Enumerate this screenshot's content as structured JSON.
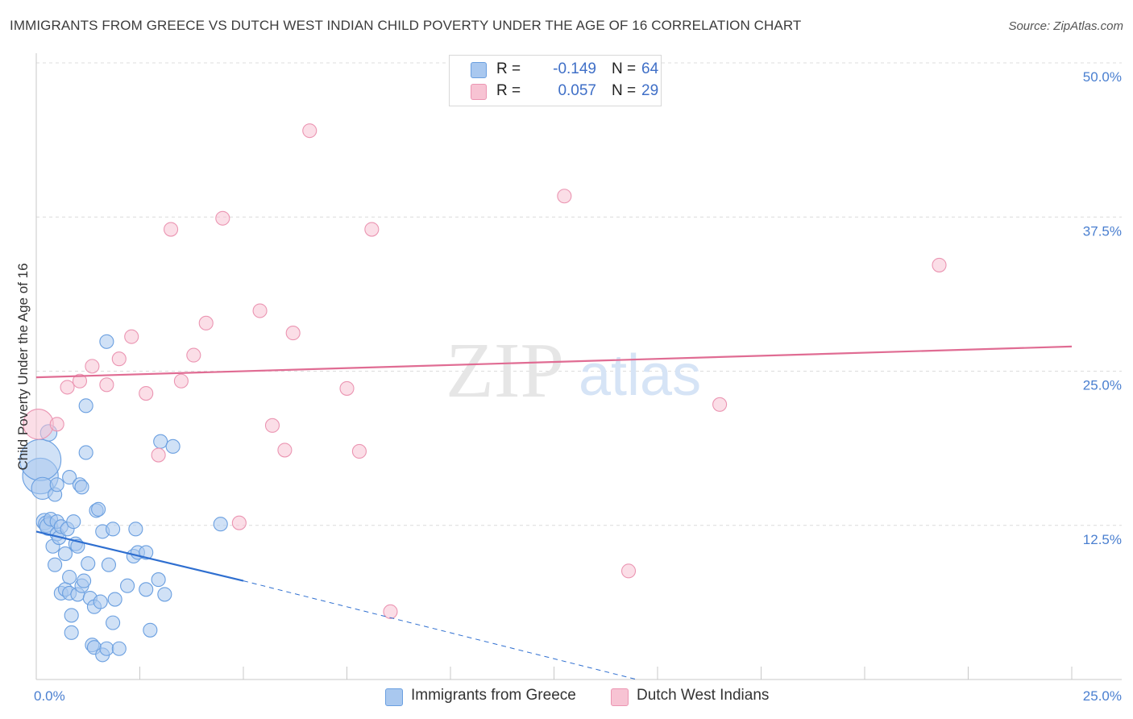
{
  "header": {
    "title": "IMMIGRANTS FROM GREECE VS DUTCH WEST INDIAN CHILD POVERTY UNDER THE AGE OF 16 CORRELATION CHART",
    "source": "Source: ZipAtlas.com"
  },
  "watermark": {
    "zip": "ZIP",
    "atlas": "atlas"
  },
  "legend": {
    "series1": {
      "r_label": "R =",
      "r_value": "-0.149",
      "n_label": "N =",
      "n_value": "64"
    },
    "series2": {
      "r_label": "R =",
      "r_value": "0.057",
      "n_label": "N =",
      "n_value": "29"
    }
  },
  "bottom_legend": {
    "series1": "Immigrants from Greece",
    "series2": "Dutch West Indians"
  },
  "colors": {
    "blue_fill": "#a9c8ef",
    "blue_stroke": "#6a9fe0",
    "blue_line": "#2f6fd0",
    "pink_fill": "#f7c3d3",
    "pink_stroke": "#eb95b2",
    "pink_line": "#e06c93",
    "grid": "#dcdcdc",
    "tick_label": "#4a7fd0"
  },
  "chart_data": {
    "type": "scatter",
    "title": "IMMIGRANTS FROM GREECE VS DUTCH WEST INDIAN CHILD POVERTY UNDER THE AGE OF 16 CORRELATION CHART",
    "xlabel": "",
    "ylabel": "Child Poverty Under the Age of 16",
    "xlim": [
      0,
      25
    ],
    "ylim": [
      0,
      50
    ],
    "x_tick_labels": [
      "0.0%",
      "25.0%"
    ],
    "y_ticks": [
      12.5,
      25.0,
      37.5,
      50.0
    ],
    "y_tick_labels": [
      "12.5%",
      "25.0%",
      "37.5%",
      "50.0%"
    ],
    "grid": true,
    "series": [
      {
        "name": "Immigrants from Greece",
        "color": "#a9c8ef",
        "r": -0.149,
        "n": 64,
        "trend": {
          "x": [
            0,
            5.0
          ],
          "y": [
            12.0,
            8.0
          ],
          "dashed_to": [
            14.5,
            0
          ]
        },
        "points": [
          [
            0.1,
            16.5,
            2.6
          ],
          [
            0.1,
            17.8,
            3.0
          ],
          [
            0.15,
            15.5,
            1.6
          ],
          [
            0.2,
            12.8,
            1.2
          ],
          [
            0.25,
            12.6,
            1.2
          ],
          [
            0.3,
            12.4,
            1.3
          ],
          [
            0.3,
            20.0,
            1.2
          ],
          [
            0.35,
            13.0,
            1.0
          ],
          [
            0.4,
            10.8,
            1.0
          ],
          [
            0.45,
            9.3,
            1.0
          ],
          [
            0.5,
            11.8,
            1.0
          ],
          [
            0.5,
            12.8,
            1.0
          ],
          [
            0.45,
            15.0,
            1.0
          ],
          [
            0.5,
            15.8,
            1.0
          ],
          [
            0.55,
            11.5,
            1.0
          ],
          [
            0.6,
            12.4,
            1.0
          ],
          [
            0.6,
            7.0,
            1.0
          ],
          [
            0.7,
            7.3,
            1.0
          ],
          [
            0.7,
            10.2,
            1.0
          ],
          [
            0.75,
            12.2,
            1.0
          ],
          [
            0.8,
            8.3,
            1.0
          ],
          [
            0.8,
            7.0,
            1.0
          ],
          [
            0.8,
            16.4,
            1.0
          ],
          [
            0.85,
            5.2,
            1.0
          ],
          [
            0.85,
            3.8,
            1.0
          ],
          [
            0.9,
            12.8,
            1.0
          ],
          [
            0.95,
            11.0,
            1.0
          ],
          [
            1.0,
            6.9,
            1.0
          ],
          [
            1.0,
            10.8,
            1.0
          ],
          [
            1.05,
            15.8,
            1.0
          ],
          [
            1.1,
            7.6,
            1.0
          ],
          [
            1.1,
            15.6,
            1.0
          ],
          [
            1.15,
            8.0,
            1.0
          ],
          [
            1.2,
            18.4,
            1.0
          ],
          [
            1.2,
            22.2,
            1.0
          ],
          [
            1.25,
            9.4,
            1.0
          ],
          [
            1.3,
            6.6,
            1.0
          ],
          [
            1.35,
            2.8,
            1.0
          ],
          [
            1.4,
            5.9,
            1.0
          ],
          [
            1.4,
            2.6,
            1.0
          ],
          [
            1.45,
            13.7,
            1.0
          ],
          [
            1.5,
            13.8,
            1.0
          ],
          [
            1.55,
            6.3,
            1.0
          ],
          [
            1.6,
            2.0,
            1.0
          ],
          [
            1.7,
            2.5,
            1.0
          ],
          [
            1.6,
            12.0,
            1.0
          ],
          [
            1.7,
            27.4,
            1.0
          ],
          [
            1.75,
            9.3,
            1.0
          ],
          [
            1.85,
            12.2,
            1.0
          ],
          [
            1.85,
            4.6,
            1.0
          ],
          [
            1.9,
            6.5,
            1.0
          ],
          [
            2.0,
            2.5,
            1.0
          ],
          [
            2.2,
            7.6,
            1.0
          ],
          [
            2.35,
            10.0,
            1.0
          ],
          [
            2.4,
            12.2,
            1.0
          ],
          [
            2.45,
            10.3,
            1.0
          ],
          [
            2.65,
            7.3,
            1.0
          ],
          [
            2.65,
            10.3,
            1.0
          ],
          [
            2.75,
            4.0,
            1.0
          ],
          [
            2.95,
            8.1,
            1.0
          ],
          [
            3.0,
            19.3,
            1.0
          ],
          [
            3.1,
            6.9,
            1.0
          ],
          [
            3.3,
            18.9,
            1.0
          ],
          [
            4.45,
            12.6,
            1.0
          ]
        ]
      },
      {
        "name": "Dutch West Indians",
        "color": "#f7c3d3",
        "r": 0.057,
        "n": 29,
        "trend": {
          "x": [
            0,
            25.0
          ],
          "y": [
            24.5,
            27.0
          ]
        },
        "points": [
          [
            0.05,
            20.7,
            2.2
          ],
          [
            0.5,
            20.7,
            1.0
          ],
          [
            0.75,
            23.7,
            1.0
          ],
          [
            1.05,
            24.2,
            1.0
          ],
          [
            1.35,
            25.4,
            1.0
          ],
          [
            1.7,
            23.9,
            1.0
          ],
          [
            2.0,
            26.0,
            1.0
          ],
          [
            2.3,
            27.8,
            1.0
          ],
          [
            2.65,
            23.2,
            1.0
          ],
          [
            2.95,
            18.2,
            1.0
          ],
          [
            3.25,
            36.5,
            1.0
          ],
          [
            3.5,
            24.2,
            1.0
          ],
          [
            3.8,
            26.3,
            1.0
          ],
          [
            4.1,
            28.9,
            1.0
          ],
          [
            4.5,
            37.4,
            1.0
          ],
          [
            4.9,
            12.7,
            1.0
          ],
          [
            5.4,
            29.9,
            1.0
          ],
          [
            5.7,
            20.6,
            1.0
          ],
          [
            6.0,
            18.6,
            1.0
          ],
          [
            6.2,
            28.1,
            1.0
          ],
          [
            6.6,
            44.5,
            1.0
          ],
          [
            7.5,
            23.6,
            1.0
          ],
          [
            7.8,
            18.5,
            1.0
          ],
          [
            8.1,
            36.5,
            1.0
          ],
          [
            8.55,
            5.5,
            1.0
          ],
          [
            12.75,
            39.2,
            1.0
          ],
          [
            14.3,
            8.8,
            1.0
          ],
          [
            16.5,
            22.3,
            1.0
          ],
          [
            21.8,
            33.6,
            1.0
          ]
        ]
      }
    ]
  }
}
